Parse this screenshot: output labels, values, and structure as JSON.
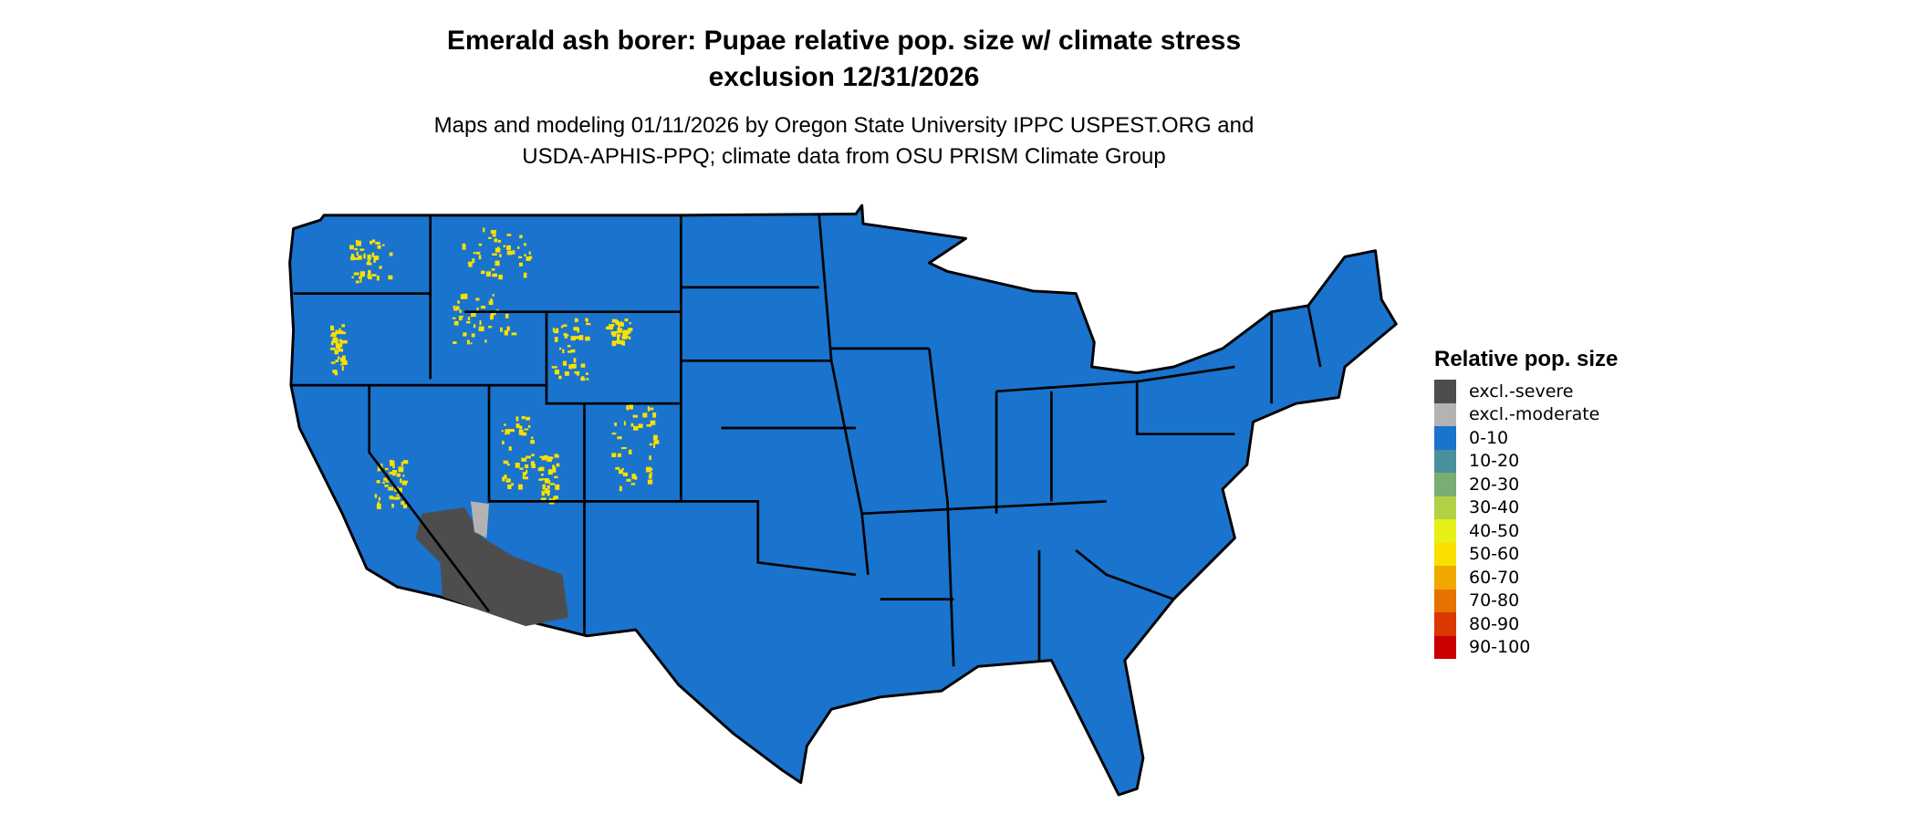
{
  "title_line1": "Emerald ash borer: Pupae relative pop. size w/ climate stress",
  "title_line2": "exclusion 12/31/2026",
  "subtitle_line1": "Maps and modeling 01/11/2026 by Oregon State University IPPC USPEST.ORG and",
  "subtitle_line2": "USDA-APHIS-PPQ; climate data from OSU PRISM Climate Group",
  "map": {
    "region": "Contiguous United States",
    "dominant_class": "0-10",
    "colors": {
      "state_border": "#000000"
    }
  },
  "legend": {
    "title": "Relative pop. size",
    "items": [
      {
        "label": "excl.-severe",
        "color": "#4d4d4d"
      },
      {
        "label": "excl.-moderate",
        "color": "#b3b3b3"
      },
      {
        "label": "0-10",
        "color": "#1a73cc"
      },
      {
        "label": "10-20",
        "color": "#4a909c"
      },
      {
        "label": "20-30",
        "color": "#7aad73"
      },
      {
        "label": "30-40",
        "color": "#b3d147"
      },
      {
        "label": "40-50",
        "color": "#e6f016"
      },
      {
        "label": "50-60",
        "color": "#f9e000"
      },
      {
        "label": "60-70",
        "color": "#f0a800"
      },
      {
        "label": "70-80",
        "color": "#e67300"
      },
      {
        "label": "80-90",
        "color": "#d93800"
      },
      {
        "label": "90-100",
        "color": "#cc0000"
      }
    ]
  }
}
